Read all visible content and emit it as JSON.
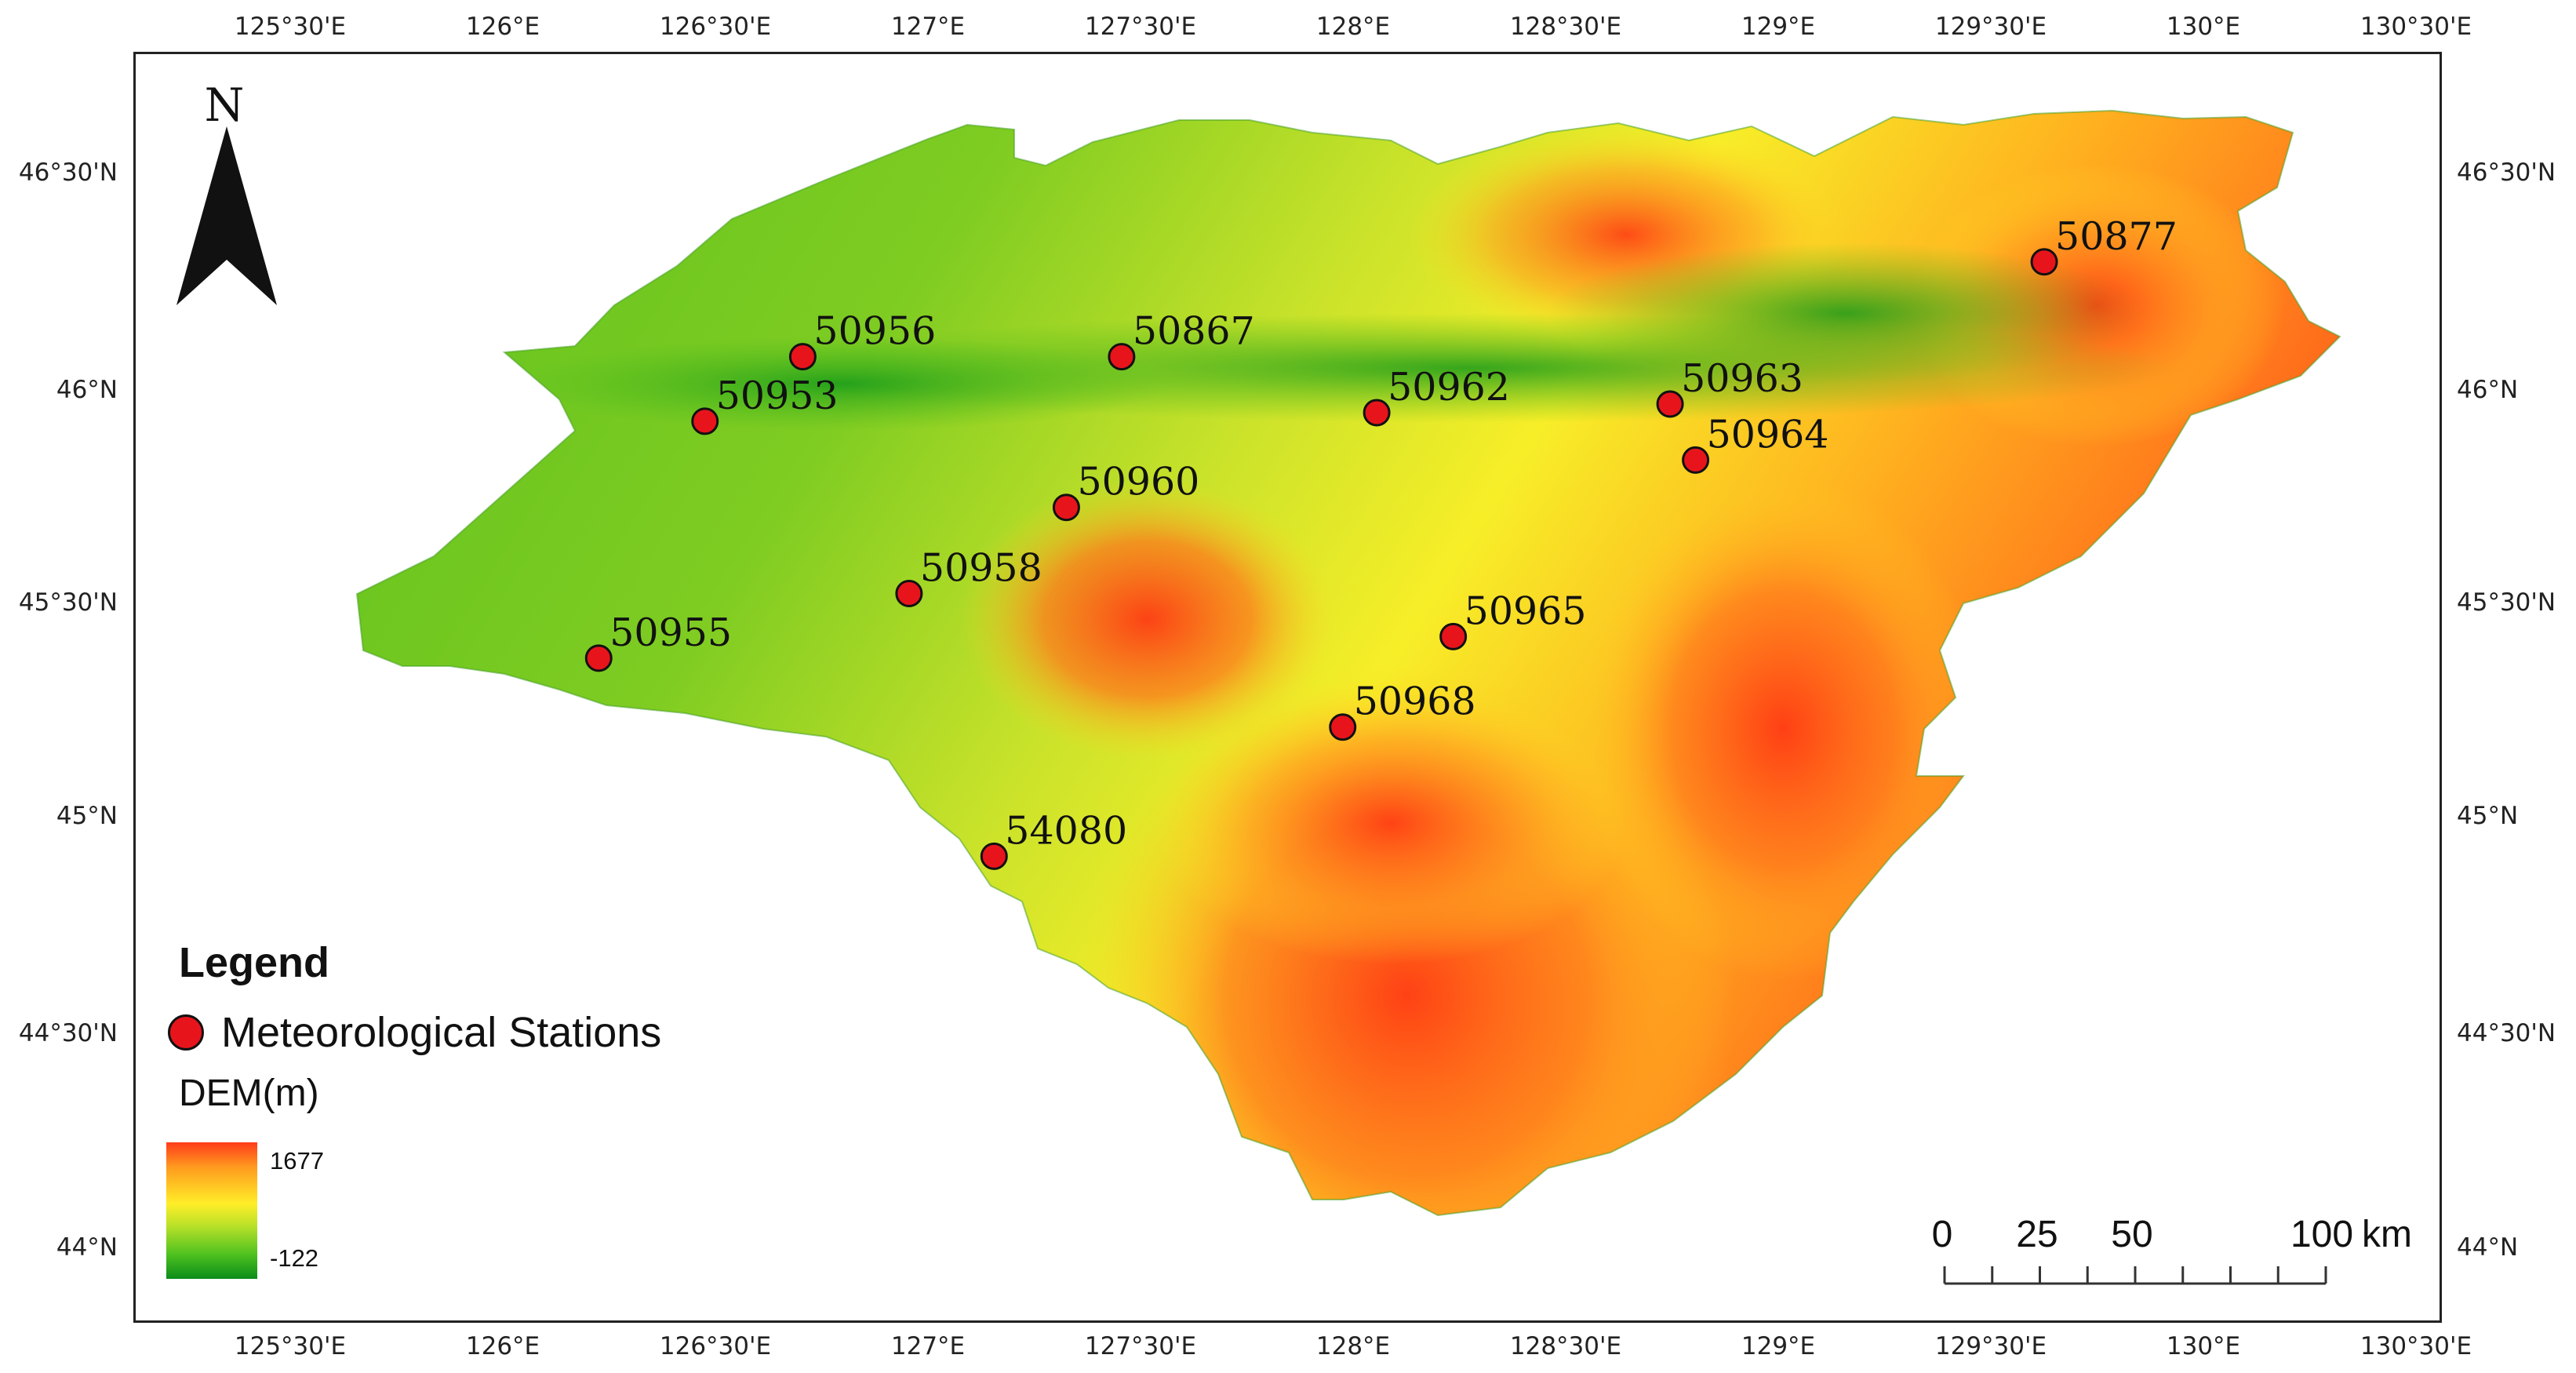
{
  "map": {
    "north_label": "N",
    "legend": {
      "title": "Legend",
      "station_label": "Meteorological Stations",
      "dem_title": "DEM(m)",
      "dem_max": "1677",
      "dem_min": "-122"
    },
    "scale_bar": {
      "labels": [
        "0",
        "25",
        "50",
        "100"
      ],
      "unit": "km"
    },
    "longitude_ticks": [
      "125°30'E",
      "126°E",
      "126°30'E",
      "127°E",
      "127°30'E",
      "128°E",
      "128°30'E",
      "129°E",
      "129°30'E",
      "130°E",
      "130°30'E"
    ],
    "latitude_ticks": [
      "46°30'N",
      "46°N",
      "45°30'N",
      "45°N",
      "44°30'N",
      "44°N"
    ],
    "stations": [
      {
        "id": "50877",
        "lon": 129.62,
        "lat": 46.3
      },
      {
        "id": "50956",
        "lon": 126.7,
        "lat": 46.08
      },
      {
        "id": "50867",
        "lon": 127.45,
        "lat": 46.08
      },
      {
        "id": "50953",
        "lon": 126.47,
        "lat": 45.93
      },
      {
        "id": "50962",
        "lon": 128.05,
        "lat": 45.95
      },
      {
        "id": "50963",
        "lon": 128.74,
        "lat": 45.97
      },
      {
        "id": "50964",
        "lon": 128.8,
        "lat": 45.84
      },
      {
        "id": "50960",
        "lon": 127.32,
        "lat": 45.73
      },
      {
        "id": "50958",
        "lon": 126.95,
        "lat": 45.53
      },
      {
        "id": "50955",
        "lon": 126.22,
        "lat": 45.38
      },
      {
        "id": "50965",
        "lon": 128.23,
        "lat": 45.43
      },
      {
        "id": "50968",
        "lon": 127.97,
        "lat": 45.22
      },
      {
        "id": "54080",
        "lon": 127.15,
        "lat": 44.92
      }
    ],
    "colors": {
      "station_fill": "#e8141c",
      "dem_high": "#ff3b1a",
      "dem_mid": "#ffee28",
      "dem_low": "#0a8c1a"
    }
  }
}
